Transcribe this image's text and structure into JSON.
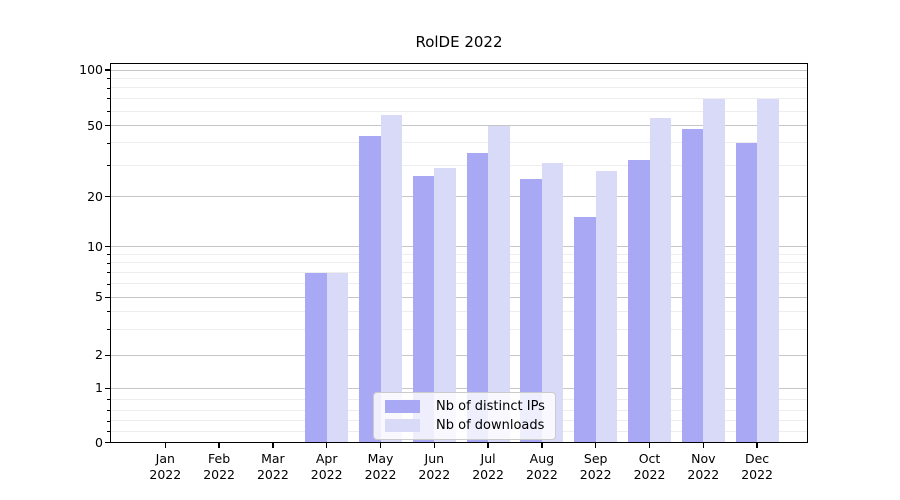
{
  "chart_data": {
    "type": "bar",
    "title": "RolDE 2022",
    "categories": [
      "Jan 2022",
      "Feb 2022",
      "Mar 2022",
      "Apr 2022",
      "May 2022",
      "Jun 2022",
      "Jul 2022",
      "Aug 2022",
      "Sep 2022",
      "Oct 2022",
      "Nov 2022",
      "Dec 2022"
    ],
    "x_tick_months": [
      "Jan",
      "Feb",
      "Mar",
      "Apr",
      "May",
      "Jun",
      "Jul",
      "Aug",
      "Sep",
      "Oct",
      "Nov",
      "Dec"
    ],
    "x_tick_year": "2022",
    "series": [
      {
        "name": "Nb of distinct IPs",
        "color": "#a8a8f5",
        "values": [
          0,
          0,
          0,
          7,
          44,
          26,
          35,
          25,
          15,
          32,
          48,
          40
        ]
      },
      {
        "name": "Nb of downloads",
        "color": "#d9d9f8",
        "values": [
          0,
          0,
          0,
          7,
          57,
          29,
          50,
          31,
          28,
          55,
          70,
          70
        ]
      }
    ],
    "yscale": "symlog",
    "ylabel": "",
    "xlabel": "",
    "ylim": [
      0,
      110
    ],
    "ytick_values": [
      0,
      1,
      2,
      5,
      10,
      20,
      50,
      100
    ],
    "ytick_labels": [
      "0",
      "1",
      "2",
      "5",
      "10",
      "20",
      "50",
      "100"
    ],
    "minor_grid_values": [
      0.2,
      0.4,
      0.6,
      0.8,
      3,
      4,
      6,
      7,
      8,
      9,
      30,
      40,
      60,
      70,
      80,
      90
    ],
    "grid": true,
    "legend_position": "lower center",
    "colors": {
      "grid_major": "#c6c6c6",
      "grid_minor": "#ededed",
      "axis": "#000000",
      "background": "#ffffff"
    }
  }
}
